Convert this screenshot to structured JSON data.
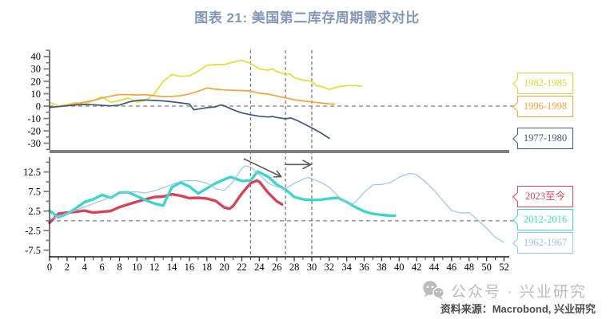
{
  "title": {
    "text": "图表 21: 美国第二库存周期需求对比",
    "color": "#8497b5"
  },
  "legend_callouts": [
    {
      "label": "1982-1985",
      "color": "#ddd435"
    },
    {
      "label": "1996-1998",
      "color": "#f2a33c"
    },
    {
      "label": "1977-1980",
      "color": "#44567c"
    },
    {
      "label": "2023至今",
      "color": "#d5455a"
    },
    {
      "label": "2012-2016",
      "color": "#3fd5ca"
    },
    {
      "label": "1962-1967",
      "color": "#9cc3e5"
    }
  ],
  "watermark": {
    "icon": "wechat-icon",
    "text": "公众号 · 兴业研究",
    "color": "#b9bcbe"
  },
  "source": {
    "text": "资料来源：Macrobond, 兴业研究"
  },
  "chart_data": [
    {
      "type": "line",
      "panel": "top",
      "title": "",
      "xlabel": "",
      "ylabel": "",
      "ylim": [
        -35.4,
        45.1
      ],
      "yticks": [
        40,
        30,
        20,
        10,
        0,
        -10,
        -20,
        -30
      ],
      "minor_step": 5,
      "zero_line": 0,
      "vertical_reference_x": [
        23,
        27,
        30
      ],
      "grid": "off",
      "legend_position": "right-callouts",
      "series": [
        {
          "name": "1982-1985",
          "color": "#e2dc3a",
          "width": 1.7,
          "points": [
            [
              0,
              3
            ],
            [
              1,
              0
            ],
            [
              2,
              1.2
            ],
            [
              3,
              2.8
            ],
            [
              4,
              1.5
            ],
            [
              5,
              4.5
            ],
            [
              6,
              7.5
            ],
            [
              7,
              3
            ],
            [
              8,
              4.5
            ],
            [
              9,
              6.5
            ],
            [
              10,
              3.2
            ],
            [
              11,
              4.5
            ],
            [
              12,
              10
            ],
            [
              13,
              20
            ],
            [
              14,
              25.5
            ],
            [
              15,
              24
            ],
            [
              16,
              24.5
            ],
            [
              17,
              28
            ],
            [
              18,
              33
            ],
            [
              19,
              33.5
            ],
            [
              20,
              33.5
            ],
            [
              21,
              35.5
            ],
            [
              22,
              37
            ],
            [
              23,
              34.5
            ],
            [
              24,
              30
            ],
            [
              25,
              29
            ],
            [
              25.5,
              30
            ],
            [
              26,
              28
            ],
            [
              27,
              25.5
            ],
            [
              27.5,
              26
            ],
            [
              28,
              23
            ],
            [
              29,
              21
            ],
            [
              30,
              20
            ],
            [
              30.5,
              16.5
            ],
            [
              31,
              16
            ],
            [
              32,
              13.5
            ],
            [
              33,
              15.5
            ],
            [
              34,
              16.5
            ],
            [
              35,
              16.5
            ],
            [
              35.7,
              16
            ]
          ]
        },
        {
          "name": "1996-1998",
          "color": "#f2a33c",
          "width": 1.7,
          "points": [
            [
              0,
              -1
            ],
            [
              1,
              -0.3
            ],
            [
              2,
              0.8
            ],
            [
              3,
              2
            ],
            [
              4,
              3.2
            ],
            [
              5,
              4.5
            ],
            [
              6,
              6.5
            ],
            [
              7,
              8
            ],
            [
              8,
              9.3
            ],
            [
              9,
              9.2
            ],
            [
              10,
              9
            ],
            [
              11,
              9.2
            ],
            [
              12,
              8.4
            ],
            [
              13,
              7.6
            ],
            [
              14,
              7.8
            ],
            [
              15,
              8.4
            ],
            [
              16,
              9.8
            ],
            [
              17,
              12
            ],
            [
              18,
              14.6
            ],
            [
              19,
              13.6
            ],
            [
              20,
              13
            ],
            [
              21,
              12.8
            ],
            [
              22,
              12.6
            ],
            [
              23,
              12.2
            ],
            [
              24,
              10.4
            ],
            [
              25,
              9.6
            ],
            [
              26,
              8.2
            ],
            [
              27,
              6.6
            ],
            [
              28,
              5.2
            ],
            [
              29,
              4.2
            ],
            [
              30,
              3.4
            ],
            [
              31,
              2.6
            ],
            [
              32,
              1.8
            ],
            [
              32.6,
              1.5
            ]
          ]
        },
        {
          "name": "1977-1980",
          "color": "#44567c",
          "width": 1.7,
          "points": [
            [
              0,
              -1
            ],
            [
              1,
              -0.4
            ],
            [
              2,
              0.2
            ],
            [
              3,
              0.9
            ],
            [
              4,
              1.3
            ],
            [
              5,
              1.1
            ],
            [
              6,
              0.6
            ],
            [
              7,
              0.2
            ],
            [
              8,
              0.8
            ],
            [
              9,
              3.2
            ],
            [
              10,
              4.6
            ],
            [
              11,
              5
            ],
            [
              12,
              4.5
            ],
            [
              13,
              4.2
            ],
            [
              14,
              3.5
            ],
            [
              15,
              2.6
            ],
            [
              16,
              1.6
            ],
            [
              16.5,
              -3
            ],
            [
              17,
              -2.4
            ],
            [
              18,
              -1.3
            ],
            [
              19,
              -0.6
            ],
            [
              19.6,
              1
            ],
            [
              20,
              0.2
            ],
            [
              21,
              -3
            ],
            [
              22,
              -5.5
            ],
            [
              23,
              -7
            ],
            [
              24,
              -8.2
            ],
            [
              25,
              -8.8
            ],
            [
              25.5,
              -8.4
            ],
            [
              26,
              -9.2
            ],
            [
              27,
              -10.3
            ],
            [
              27.6,
              -9.6
            ],
            [
              28.3,
              -11.5
            ],
            [
              29,
              -14
            ],
            [
              30,
              -17.5
            ],
            [
              31,
              -21.5
            ],
            [
              32,
              -26
            ]
          ]
        }
      ]
    },
    {
      "type": "line",
      "panel": "bottom",
      "title": "",
      "xlabel": "",
      "ylabel": "",
      "xlim": [
        0,
        52.6
      ],
      "ylim": [
        -9.2,
        16.3
      ],
      "yticks": [
        12.5,
        7.5,
        2.5,
        -2.5,
        -7.5
      ],
      "minor_step": 2.5,
      "xticks": [
        0,
        2,
        4,
        6,
        8,
        10,
        12,
        14,
        16,
        18,
        20,
        22,
        24,
        26,
        28,
        30,
        32,
        34,
        36,
        38,
        40,
        42,
        44,
        46,
        48,
        50,
        52
      ],
      "zero_line": 0,
      "vertical_reference_x": [
        23,
        27,
        30
      ],
      "grid": "off",
      "legend_position": "right-callouts",
      "series": [
        {
          "name": "2023至今",
          "color": "#d5455a",
          "width": 3.4,
          "points": [
            [
              0,
              -0.5
            ],
            [
              1,
              1.8
            ],
            [
              2,
              2.1
            ],
            [
              3,
              2.3
            ],
            [
              4,
              2.6
            ],
            [
              5,
              2.1
            ],
            [
              6,
              2.3
            ],
            [
              7,
              2.5
            ],
            [
              8,
              3.5
            ],
            [
              9,
              4.2
            ],
            [
              10,
              4.9
            ],
            [
              11,
              5.5
            ],
            [
              12,
              6.1
            ],
            [
              13,
              6.2
            ],
            [
              14,
              6.8
            ],
            [
              15,
              6.4
            ],
            [
              16,
              5.8
            ],
            [
              17,
              5.9
            ],
            [
              18,
              5.7
            ],
            [
              19,
              5.1
            ],
            [
              20,
              3.4
            ],
            [
              20.6,
              3.1
            ],
            [
              21,
              3.8
            ],
            [
              22,
              7
            ],
            [
              23,
              9.6
            ],
            [
              23.7,
              10.3
            ],
            [
              24,
              10
            ],
            [
              25,
              7.2
            ],
            [
              26,
              5
            ],
            [
              26.6,
              4.2
            ]
          ]
        },
        {
          "name": "2012-2016",
          "color": "#3fd5ca",
          "width": 3.4,
          "points": [
            [
              0,
              2.6
            ],
            [
              1,
              0.9
            ],
            [
              2,
              1.8
            ],
            [
              3,
              3.2
            ],
            [
              4,
              4.8
            ],
            [
              5,
              5.5
            ],
            [
              6,
              6.6
            ],
            [
              7,
              5.9
            ],
            [
              8,
              7.2
            ],
            [
              9,
              7.3
            ],
            [
              10,
              6.3
            ],
            [
              11,
              5.3
            ],
            [
              12,
              4.4
            ],
            [
              13,
              3.9
            ],
            [
              14,
              8.6
            ],
            [
              15,
              9.8
            ],
            [
              16,
              8.8
            ],
            [
              17,
              7
            ],
            [
              18,
              8.3
            ],
            [
              19,
              9.6
            ],
            [
              20,
              10.6
            ],
            [
              20.7,
              11.2
            ],
            [
              21,
              11
            ],
            [
              22,
              10.2
            ],
            [
              23,
              10.3
            ],
            [
              23.8,
              12.6
            ],
            [
              24,
              12.4
            ],
            [
              25,
              11.3
            ],
            [
              26,
              9.3
            ],
            [
              27,
              8
            ],
            [
              28,
              6.1
            ],
            [
              29,
              5.5
            ],
            [
              30,
              5.3
            ],
            [
              31,
              5.4
            ],
            [
              32,
              5.7
            ],
            [
              33,
              5.9
            ],
            [
              34,
              4.8
            ],
            [
              35,
              3.5
            ],
            [
              36,
              2.4
            ],
            [
              37,
              1.8
            ],
            [
              38,
              1.5
            ],
            [
              39,
              1.3
            ],
            [
              39.5,
              1.3
            ]
          ]
        },
        {
          "name": "1962-1967",
          "color": "#9cc3e5",
          "width": 1.2,
          "points": [
            [
              0,
              0.4
            ],
            [
              1,
              1.1
            ],
            [
              2,
              1.9
            ],
            [
              3,
              2.7
            ],
            [
              4,
              3.5
            ],
            [
              5,
              4.4
            ],
            [
              6,
              5.2
            ],
            [
              7,
              6.1
            ],
            [
              8,
              6.9
            ],
            [
              9,
              7.4
            ],
            [
              10,
              7.4
            ],
            [
              11,
              7.1
            ],
            [
              12,
              7.7
            ],
            [
              13,
              8.4
            ],
            [
              14,
              9.3
            ],
            [
              15,
              10.1
            ],
            [
              16,
              10.3
            ],
            [
              17,
              10.2
            ],
            [
              18,
              9.6
            ],
            [
              19,
              8.2
            ],
            [
              20,
              7.8
            ],
            [
              21,
              10
            ],
            [
              22,
              13.4
            ],
            [
              22.4,
              14.1
            ],
            [
              23,
              13.8
            ],
            [
              24,
              11.8
            ],
            [
              25,
              9.7
            ],
            [
              26,
              8.7
            ],
            [
              27,
              8.2
            ],
            [
              28,
              9.6
            ],
            [
              29,
              10.7
            ],
            [
              29.6,
              11.1
            ],
            [
              30,
              10.8
            ],
            [
              31,
              9.9
            ],
            [
              32,
              8.6
            ],
            [
              33,
              6.3
            ],
            [
              34,
              4.5
            ],
            [
              34.5,
              4.1
            ],
            [
              35,
              4.8
            ],
            [
              36,
              7.3
            ],
            [
              37,
              9.2
            ],
            [
              38,
              9.3
            ],
            [
              39,
              9.8
            ],
            [
              40,
              11.2
            ],
            [
              41,
              12
            ],
            [
              41.5,
              12.1
            ],
            [
              42,
              11.8
            ],
            [
              43,
              10
            ],
            [
              44,
              7.8
            ],
            [
              45,
              5.2
            ],
            [
              46,
              2.6
            ],
            [
              47,
              2
            ],
            [
              48,
              2.1
            ],
            [
              49,
              0.2
            ],
            [
              50,
              -1.9
            ],
            [
              51,
              -4.2
            ],
            [
              52,
              -5.5
            ]
          ]
        }
      ],
      "annotations": {
        "diagonal_arrow": {
          "from": [
            22.2,
            15.9
          ],
          "to": [
            26.5,
            11.3
          ]
        },
        "horizontal_arrow": {
          "from": [
            26.9,
            14.4
          ],
          "to": [
            29.9,
            14.4
          ]
        }
      }
    }
  ]
}
